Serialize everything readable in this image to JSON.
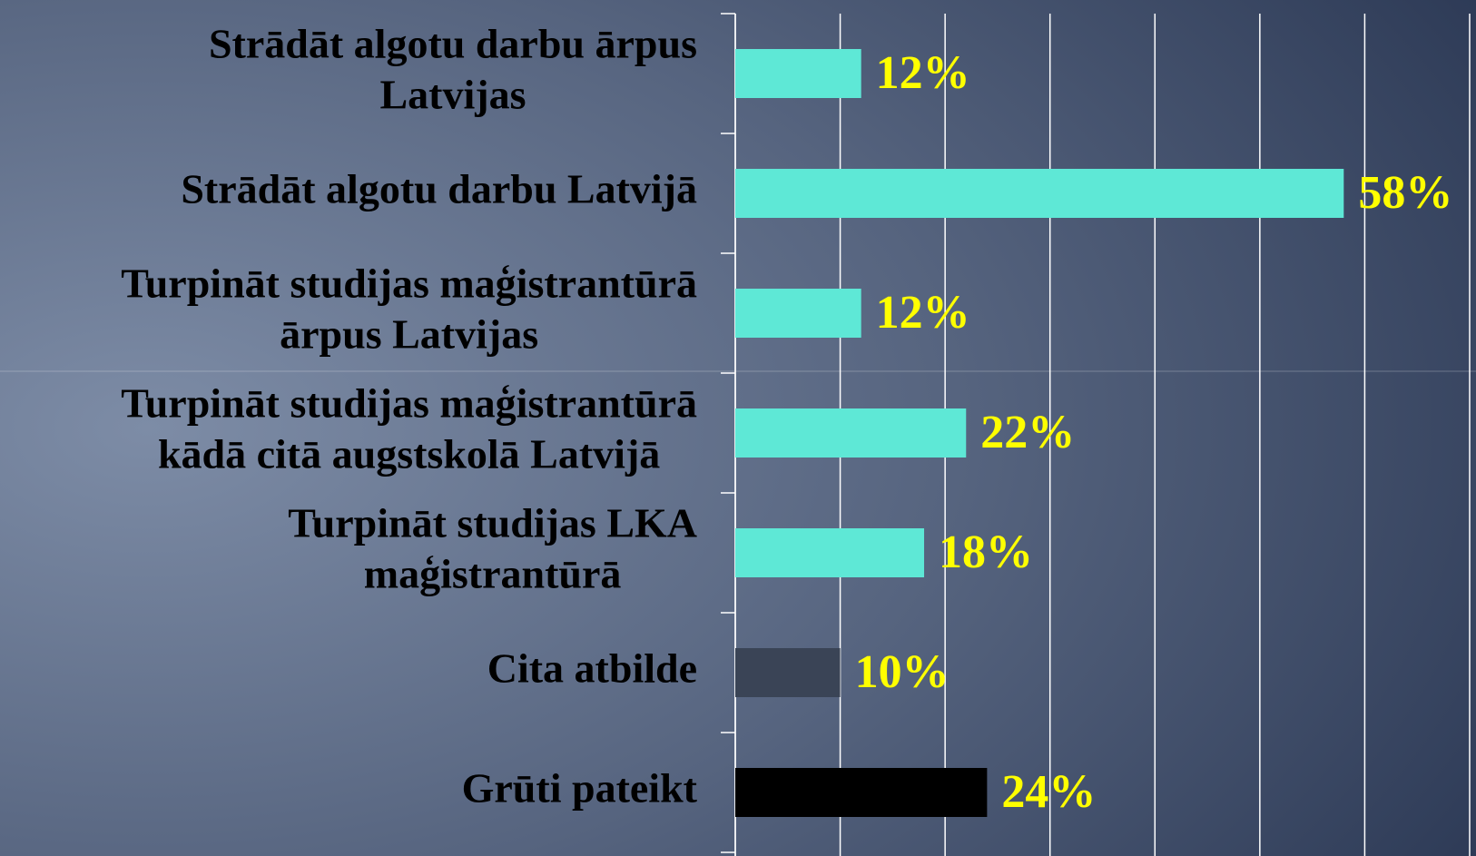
{
  "chart_data": {
    "type": "barh",
    "categories": [
      [
        "Strādāt algotu darbu ārpus",
        "Latvijas"
      ],
      [
        "Strādāt algotu darbu Latvijā"
      ],
      [
        "Turpināt studijas maģistrantūrā",
        "ārpus Latvijas"
      ],
      [
        "Turpināt studijas maģistrantūrā",
        "kādā citā augstskolā Latvijā"
      ],
      [
        "Turpināt studijas LKA",
        "maģistrantūrā"
      ],
      [
        "Cita atbilde"
      ],
      [
        "Grūti pateikt"
      ]
    ],
    "values": [
      12,
      58,
      12,
      22,
      18,
      10,
      24
    ],
    "value_labels": [
      "12%",
      "58%",
      "12%",
      "22%",
      "18%",
      "10%",
      "24%"
    ],
    "colors": [
      "#5ee8d6",
      "#5ee8d6",
      "#5ee8d6",
      "#5ee8d6",
      "#5ee8d6",
      "#3a4456",
      "#000000"
    ],
    "label_color": "#ffff00",
    "xlim": [
      0,
      70
    ],
    "xticks": [
      0,
      10,
      20,
      30,
      40,
      50,
      60,
      70
    ],
    "grid": true
  }
}
